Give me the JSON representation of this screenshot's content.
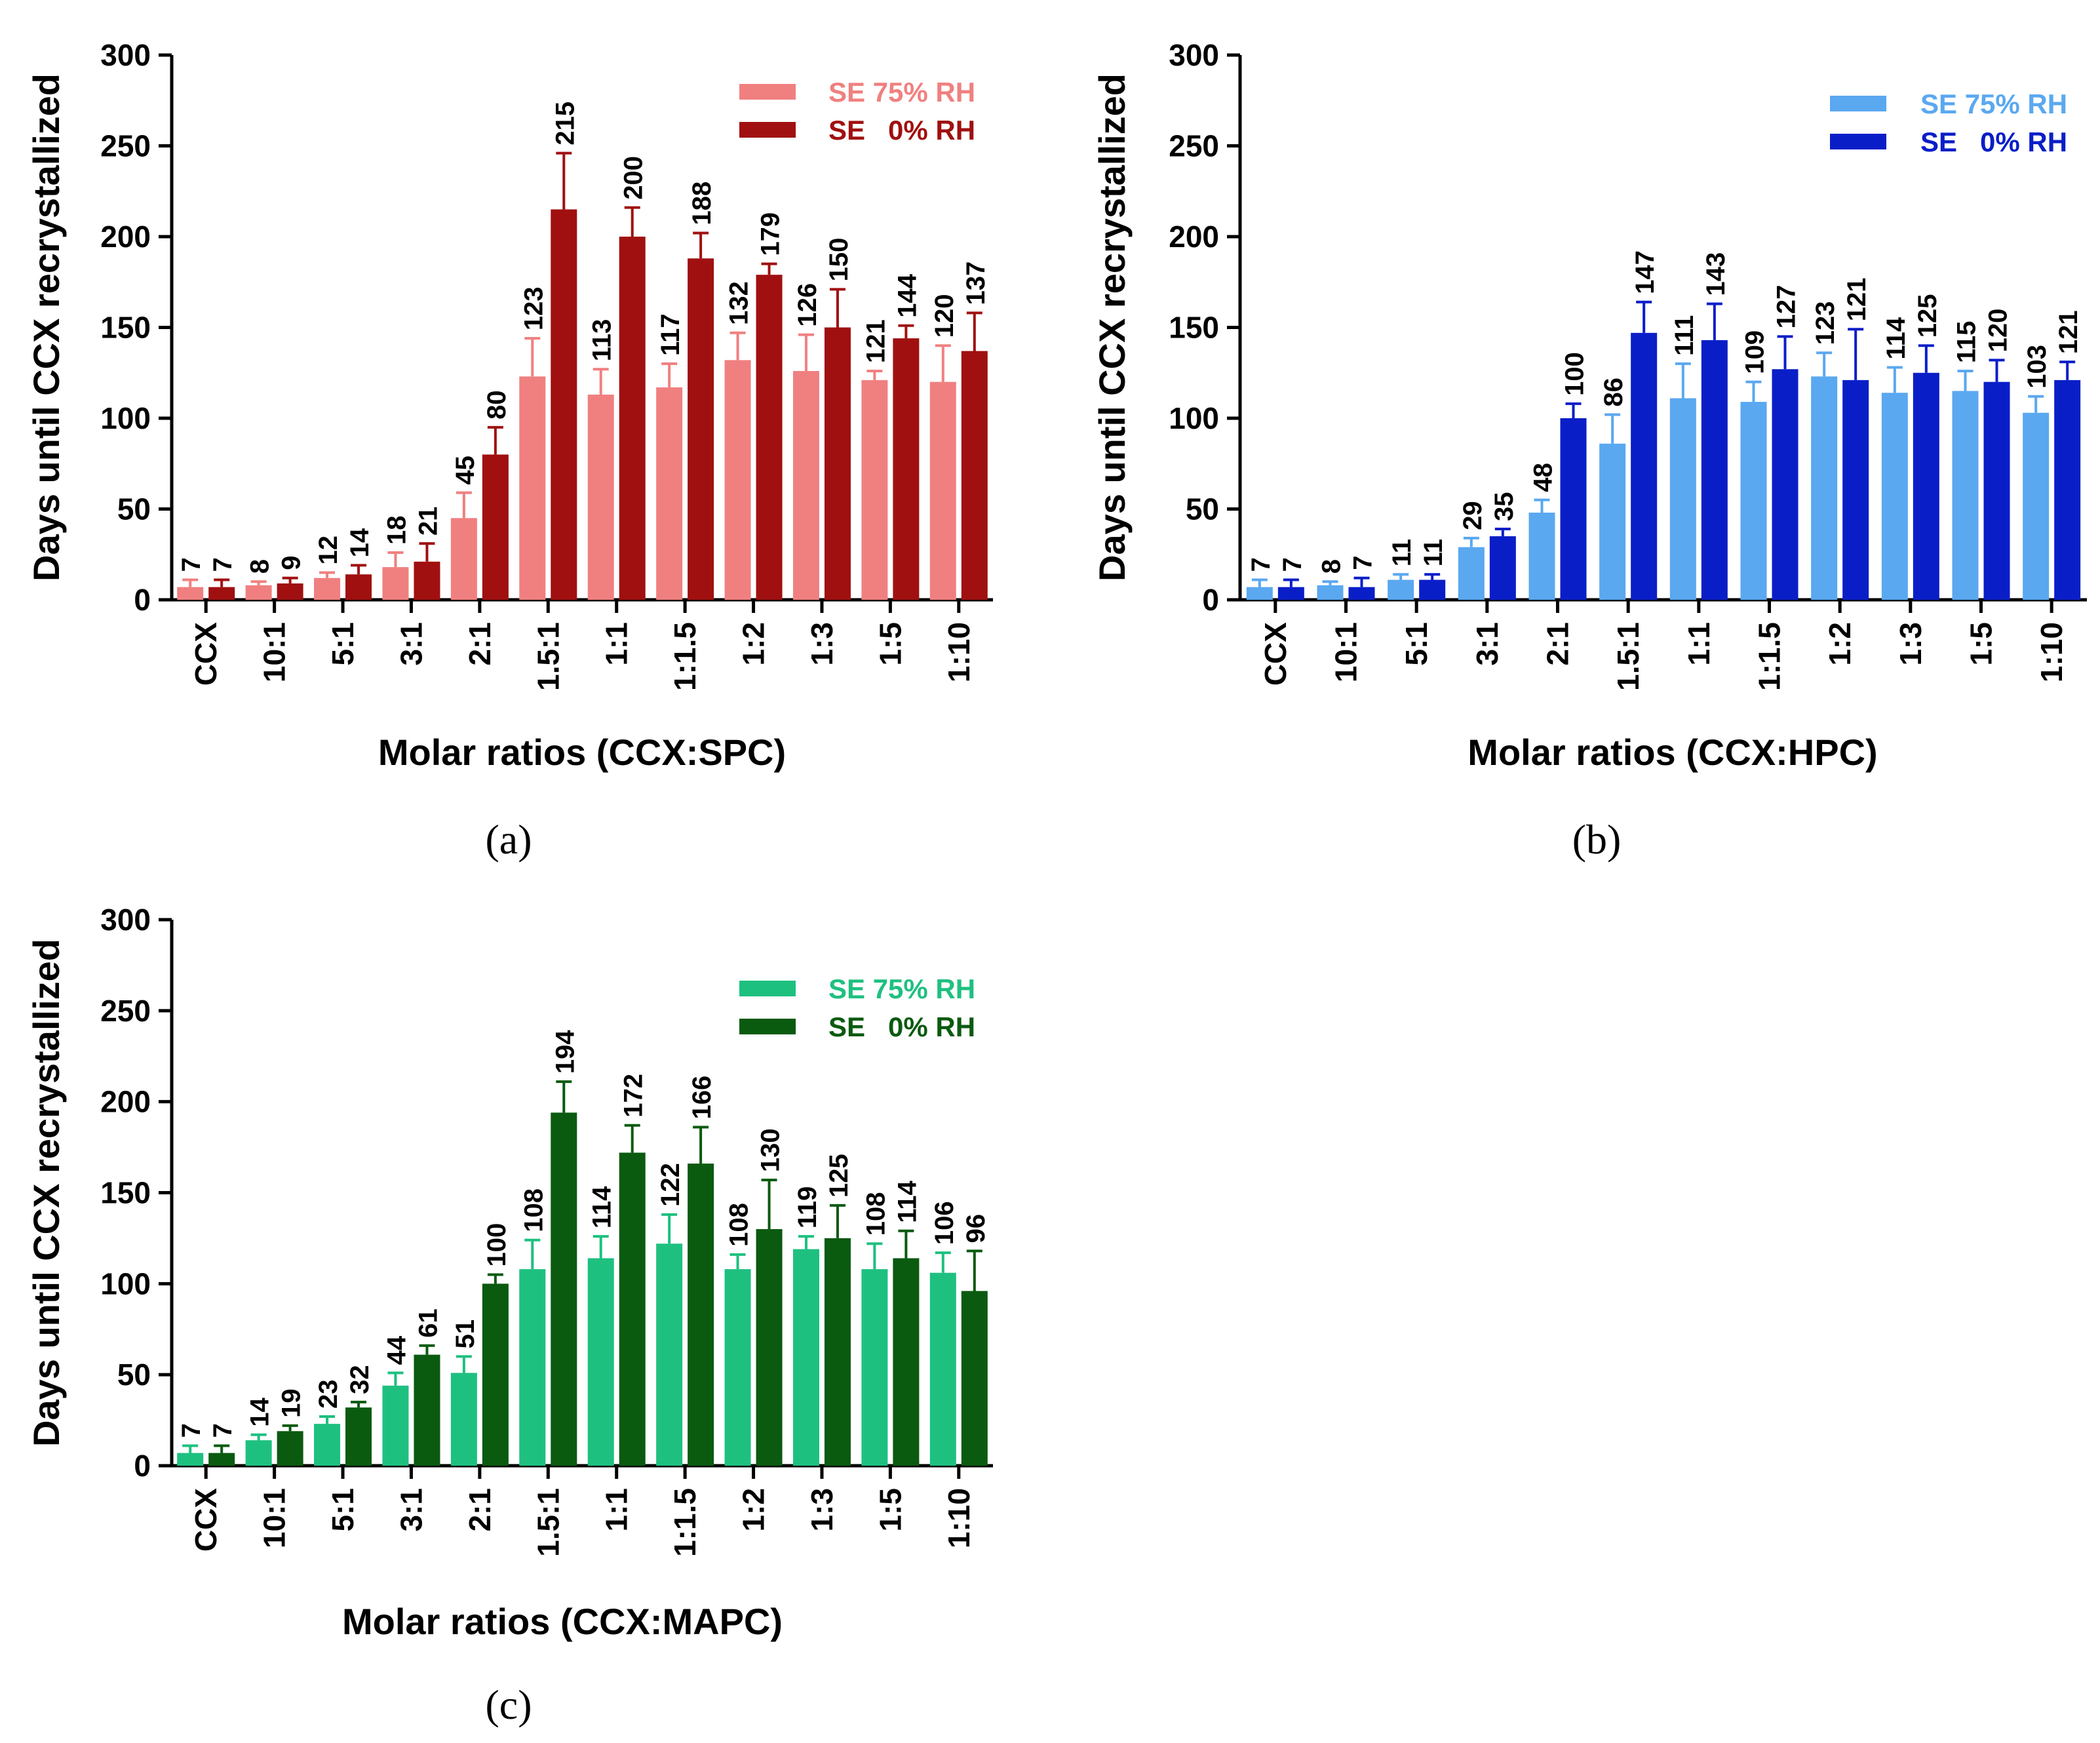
{
  "chart_data": [
    {
      "panel": "(a)",
      "type": "bar",
      "xlabel": "Molar ratios (CCX:SPC)",
      "ylabel": "Days until CCX recrystallized",
      "ylim": [
        0,
        300
      ],
      "yticks": [
        0,
        50,
        100,
        150,
        200,
        250,
        300
      ],
      "categories": [
        "CCX",
        "10:1",
        "5:1",
        "3:1",
        "2:1",
        "1.5:1",
        "1:1",
        "1:1.5",
        "1:2",
        "1:3",
        "1:5",
        "1:10"
      ],
      "series": [
        {
          "name": "SE 75% RH",
          "color": "#f08080",
          "values": [
            7,
            8,
            12,
            18,
            45,
            123,
            113,
            117,
            132,
            126,
            121,
            120
          ],
          "errors": [
            4,
            2,
            3,
            8,
            14,
            21,
            14,
            13,
            15,
            20,
            5,
            20
          ]
        },
        {
          "name": "SE   0% RH",
          "color": "#a01010",
          "values": [
            7,
            9,
            14,
            21,
            80,
            215,
            200,
            188,
            179,
            150,
            144,
            137
          ],
          "errors": [
            4,
            3,
            5,
            10,
            15,
            31,
            16,
            14,
            6,
            21,
            7,
            21
          ]
        }
      ],
      "legend_position": "top-right"
    },
    {
      "panel": "(b)",
      "type": "bar",
      "xlabel": "Molar ratios (CCX:HPC)",
      "ylabel": "Days until CCX recrystallized",
      "ylim": [
        0,
        300
      ],
      "yticks": [
        0,
        50,
        100,
        150,
        200,
        250,
        300
      ],
      "categories": [
        "CCX",
        "10:1",
        "5:1",
        "3:1",
        "2:1",
        "1.5:1",
        "1:1",
        "1:1.5",
        "1:2",
        "1:3",
        "1:5",
        "1:10"
      ],
      "series": [
        {
          "name": "SE 75% RH",
          "color": "#5aa8f0",
          "values": [
            7,
            8,
            11,
            29,
            48,
            86,
            111,
            109,
            123,
            114,
            115,
            103
          ],
          "errors": [
            4,
            2,
            3,
            5,
            7,
            16,
            19,
            11,
            13,
            14,
            11,
            9
          ]
        },
        {
          "name": "SE   0% RH",
          "color": "#0a1ec8",
          "values": [
            7,
            7,
            11,
            35,
            100,
            147,
            143,
            127,
            121,
            125,
            120,
            121
          ],
          "errors": [
            4,
            5,
            3,
            4,
            8,
            17,
            20,
            18,
            28,
            15,
            12,
            10
          ]
        }
      ],
      "legend_position": "top-right"
    },
    {
      "panel": "(c)",
      "type": "bar",
      "xlabel": "Molar ratios (CCX:MAPC)",
      "ylabel": "Days until CCX recrystallized",
      "ylim": [
        0,
        300
      ],
      "yticks": [
        0,
        50,
        100,
        150,
        200,
        250,
        300
      ],
      "categories": [
        "CCX",
        "10:1",
        "5:1",
        "3:1",
        "2:1",
        "1.5:1",
        "1:1",
        "1:1.5",
        "1:2",
        "1:3",
        "1:5",
        "1:10"
      ],
      "series": [
        {
          "name": "SE 75% RH",
          "color": "#1ec080",
          "values": [
            7,
            14,
            23,
            44,
            51,
            108,
            114,
            122,
            108,
            119,
            108,
            106
          ],
          "errors": [
            4,
            3,
            4,
            7,
            9,
            16,
            12,
            16,
            8,
            7,
            14,
            11
          ]
        },
        {
          "name": "SE   0% RH",
          "color": "#0a5a10",
          "values": [
            7,
            19,
            32,
            61,
            100,
            194,
            172,
            166,
            130,
            125,
            114,
            96
          ],
          "errors": [
            4,
            3,
            3,
            5,
            5,
            17,
            15,
            20,
            27,
            18,
            15,
            22
          ]
        }
      ],
      "legend_position": "top-right"
    }
  ]
}
